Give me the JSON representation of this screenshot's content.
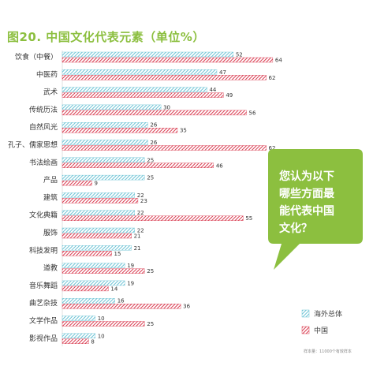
{
  "chart_data": {
    "type": "bar",
    "title": "图20. 中国文化代表元素（单位%）",
    "categories": [
      "饮食（中餐）",
      "中医药",
      "武术",
      "传统历法",
      "自然风光",
      "孔子、儒家思想",
      "书法绘画",
      "产品",
      "建筑",
      "文化典籍",
      "服饰",
      "科技发明",
      "道教",
      "音乐舞蹈",
      "曲艺杂技",
      "文学作品",
      "影视作品"
    ],
    "series": [
      {
        "name": "海外总体",
        "values": [
          52,
          47,
          44,
          30,
          26,
          26,
          25,
          25,
          22,
          22,
          22,
          21,
          19,
          19,
          16,
          10,
          10
        ]
      },
      {
        "name": "中国",
        "values": [
          64,
          62,
          49,
          56,
          35,
          62,
          46,
          9,
          23,
          55,
          21,
          15,
          25,
          14,
          36,
          25,
          8
        ]
      }
    ],
    "xlim": [
      0,
      100
    ],
    "legend_position": "bottom-right",
    "colors": {
      "overseas": "#6cc3d5",
      "china": "#d93a4f",
      "title": "#8cbf3f",
      "callout": "#8cbf3f"
    }
  },
  "callout": {
    "lines": [
      "您认为以下",
      "哪些方面最",
      "能代表中国",
      "文化？"
    ]
  },
  "footnote": "样本量：11000个有效样本"
}
